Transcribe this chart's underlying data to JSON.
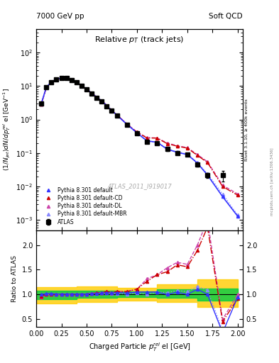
{
  "title_left": "7000 GeV pp",
  "title_right": "Soft QCD",
  "right_axis_label": "Rivet 3.1.10, ≥ 400k events",
  "right_axis_label2": "mcplots.cern.ch [arXiv:1306.3436]",
  "plot_title": "Relative p_{T} (track jets)",
  "ylabel": "(1/Njet)dN/dp$_T^{rel}$ el [GeV$^{-1}$]",
  "xlabel": "Charged Particle $p_T^{rel}$ el [GeV]",
  "ratio_ylabel": "Ratio to ATLAS",
  "watermark": "ATLAS_2011_I919017",
  "atlas_x": [
    0.05,
    0.1,
    0.15,
    0.2,
    0.25,
    0.3,
    0.35,
    0.4,
    0.45,
    0.5,
    0.55,
    0.6,
    0.65,
    0.7,
    0.75,
    0.8,
    0.9,
    1.0,
    1.1,
    1.2,
    1.3,
    1.4,
    1.5,
    1.6,
    1.7,
    1.85
  ],
  "atlas_y": [
    3.0,
    9.0,
    13.0,
    16.0,
    17.0,
    17.0,
    15.0,
    13.0,
    10.0,
    8.0,
    6.0,
    4.5,
    3.5,
    2.5,
    1.8,
    1.3,
    0.7,
    0.38,
    0.22,
    0.2,
    0.13,
    0.1,
    0.09,
    0.045,
    0.022,
    0.022
  ],
  "atlas_yerr": [
    0.3,
    0.5,
    0.7,
    0.8,
    0.8,
    0.8,
    0.7,
    0.6,
    0.5,
    0.4,
    0.3,
    0.25,
    0.2,
    0.15,
    0.12,
    0.1,
    0.06,
    0.03,
    0.02,
    0.02,
    0.015,
    0.012,
    0.01,
    0.006,
    0.004,
    0.008
  ],
  "py_default_x": [
    0.05,
    0.1,
    0.15,
    0.2,
    0.25,
    0.3,
    0.35,
    0.4,
    0.45,
    0.5,
    0.55,
    0.6,
    0.65,
    0.7,
    0.75,
    0.8,
    0.9,
    1.0,
    1.1,
    1.2,
    1.3,
    1.4,
    1.5,
    1.6,
    1.7,
    1.85,
    2.0
  ],
  "py_default_y": [
    3.0,
    9.2,
    13.2,
    16.2,
    17.2,
    17.1,
    15.1,
    13.1,
    10.1,
    8.1,
    6.1,
    4.6,
    3.6,
    2.6,
    1.85,
    1.35,
    0.72,
    0.4,
    0.23,
    0.21,
    0.13,
    0.105,
    0.09,
    0.05,
    0.022,
    0.005,
    0.0013
  ],
  "py_cd_x": [
    0.05,
    0.1,
    0.15,
    0.2,
    0.25,
    0.3,
    0.35,
    0.4,
    0.45,
    0.5,
    0.55,
    0.6,
    0.65,
    0.7,
    0.75,
    0.8,
    0.9,
    1.0,
    1.1,
    1.2,
    1.3,
    1.4,
    1.5,
    1.6,
    1.7,
    1.85,
    2.0
  ],
  "py_cd_y": [
    2.9,
    9.0,
    13.0,
    16.0,
    17.0,
    17.0,
    15.0,
    13.0,
    10.1,
    8.1,
    6.15,
    4.65,
    3.65,
    2.65,
    1.88,
    1.38,
    0.74,
    0.42,
    0.28,
    0.28,
    0.19,
    0.16,
    0.14,
    0.085,
    0.052,
    0.01,
    0.0055
  ],
  "py_dl_x": [
    0.05,
    0.1,
    0.15,
    0.2,
    0.25,
    0.3,
    0.35,
    0.4,
    0.45,
    0.5,
    0.55,
    0.6,
    0.65,
    0.7,
    0.75,
    0.8,
    0.9,
    1.0,
    1.1,
    1.2,
    1.3,
    1.4,
    1.5,
    1.6,
    1.7,
    1.85,
    2.0
  ],
  "py_dl_y": [
    2.85,
    9.0,
    13.0,
    16.0,
    17.0,
    17.0,
    15.0,
    13.0,
    10.1,
    8.1,
    6.15,
    4.65,
    3.65,
    2.65,
    1.88,
    1.38,
    0.74,
    0.42,
    0.29,
    0.28,
    0.2,
    0.165,
    0.145,
    0.09,
    0.055,
    0.011,
    0.006
  ],
  "py_mbr_x": [
    0.05,
    0.1,
    0.15,
    0.2,
    0.25,
    0.3,
    0.35,
    0.4,
    0.45,
    0.5,
    0.55,
    0.6,
    0.65,
    0.7,
    0.75,
    0.8,
    0.9,
    1.0,
    1.1,
    1.2,
    1.3,
    1.4,
    1.5,
    1.6,
    1.7,
    1.85,
    2.0
  ],
  "py_mbr_y": [
    2.9,
    9.0,
    13.0,
    16.0,
    17.0,
    17.0,
    15.0,
    13.0,
    10.05,
    8.05,
    6.1,
    4.6,
    3.6,
    2.6,
    1.83,
    1.33,
    0.71,
    0.39,
    0.22,
    0.21,
    0.135,
    0.108,
    0.095,
    0.052,
    0.024,
    0.006,
    0.0014
  ],
  "ratio_default_y": [
    1.0,
    1.02,
    1.02,
    1.01,
    1.01,
    1.01,
    1.01,
    1.01,
    1.01,
    1.01,
    1.02,
    1.02,
    1.03,
    1.04,
    1.03,
    1.04,
    1.03,
    1.05,
    1.05,
    1.05,
    1.0,
    1.05,
    1.0,
    1.11,
    1.0,
    0.23,
    0.95
  ],
  "ratio_cd_y": [
    0.97,
    1.0,
    1.0,
    1.0,
    1.0,
    1.0,
    1.0,
    1.0,
    1.01,
    1.01,
    1.025,
    1.03,
    1.04,
    1.06,
    1.04,
    1.06,
    1.06,
    1.11,
    1.27,
    1.4,
    1.46,
    1.6,
    1.56,
    1.89,
    2.36,
    0.45,
    0.92
  ],
  "ratio_dl_y": [
    0.95,
    1.0,
    1.0,
    1.0,
    1.0,
    1.0,
    1.0,
    1.0,
    1.01,
    1.01,
    1.025,
    1.03,
    1.04,
    1.06,
    1.04,
    1.06,
    1.06,
    1.11,
    1.32,
    1.4,
    1.54,
    1.65,
    1.61,
    2.0,
    2.5,
    0.5,
    1.0
  ],
  "ratio_mbr_y": [
    0.97,
    1.0,
    1.0,
    1.0,
    1.0,
    1.0,
    1.0,
    1.0,
    1.0,
    1.0,
    1.02,
    1.02,
    1.03,
    1.04,
    1.02,
    1.02,
    1.01,
    1.03,
    1.0,
    1.05,
    1.04,
    1.08,
    1.06,
    1.16,
    1.09,
    0.27,
    0.23
  ],
  "green_band_x": [
    0.0,
    0.4,
    0.8,
    1.2,
    1.6,
    2.0
  ],
  "green_band_low": [
    0.9,
    0.93,
    0.95,
    0.93,
    0.88,
    0.88
  ],
  "green_band_high": [
    1.08,
    1.08,
    1.07,
    1.1,
    1.12,
    1.12
  ],
  "yellow_band_x": [
    0.0,
    0.4,
    0.8,
    1.2,
    1.6,
    2.0
  ],
  "yellow_band_low": [
    0.82,
    0.85,
    0.88,
    0.85,
    0.75,
    0.75
  ],
  "yellow_band_high": [
    1.15,
    1.17,
    1.14,
    1.2,
    1.3,
    1.3
  ],
  "color_default": "#3333ff",
  "color_cd": "#cc0000",
  "color_dl": "#cc44aa",
  "color_mbr": "#8888ff",
  "color_atlas": "#000000",
  "color_green": "#00cc44",
  "color_yellow": "#ffcc00",
  "xlim": [
    0.0,
    2.05
  ],
  "ylim_main": [
    0.0005,
    500
  ],
  "ylim_ratio": [
    0.35,
    2.3
  ],
  "ratio_yticks": [
    0.5,
    1.0,
    1.5,
    2.0
  ]
}
